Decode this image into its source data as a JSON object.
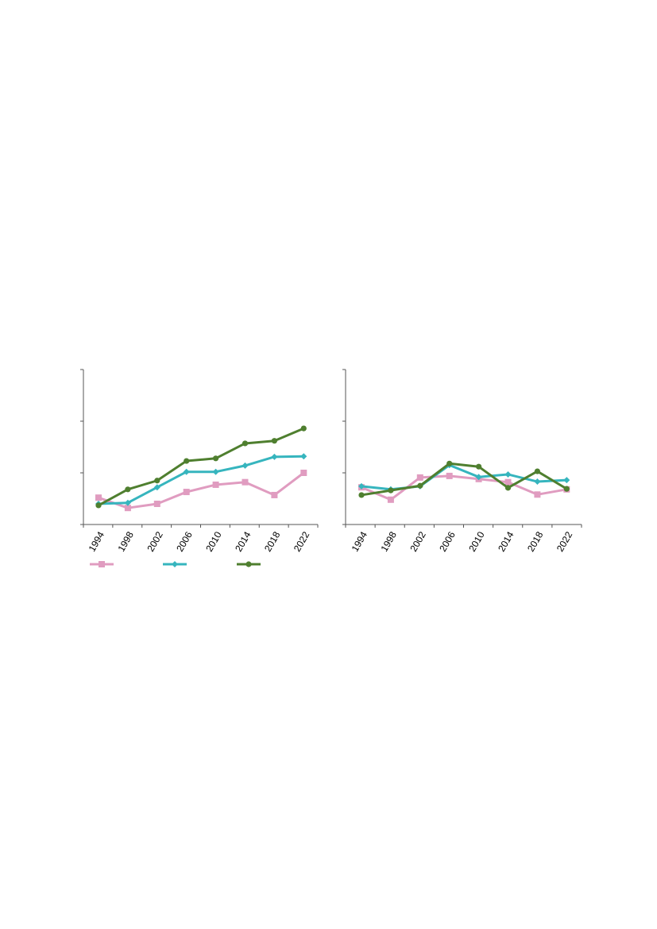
{
  "chart_data": [
    {
      "type": "line",
      "title": "",
      "xlabel": "",
      "ylabel": "",
      "categories": [
        "1994",
        "1998",
        "2002",
        "2006",
        "2010",
        "2014",
        "2018",
        "2022"
      ],
      "ylim": [
        0,
        3
      ],
      "y_ticks_labeled": false,
      "grid": false,
      "legend": "bottom",
      "series": [
        {
          "color": "#e09cc0",
          "marker": "square",
          "values": [
            0.52,
            0.32,
            0.4,
            0.63,
            0.77,
            0.82,
            0.57,
            1.0
          ]
        },
        {
          "color": "#36b5be",
          "marker": "diamond",
          "values": [
            0.4,
            0.42,
            0.72,
            1.02,
            1.02,
            1.14,
            1.31,
            1.32
          ]
        },
        {
          "color": "#4f7f2f",
          "marker": "circle",
          "values": [
            0.37,
            0.68,
            0.85,
            1.23,
            1.28,
            1.57,
            1.62,
            1.86
          ]
        }
      ]
    },
    {
      "type": "line",
      "title": "",
      "xlabel": "",
      "ylabel": "",
      "categories": [
        "1994",
        "1998",
        "2002",
        "2006",
        "2010",
        "2014",
        "2018",
        "2022"
      ],
      "ylim": [
        0,
        3
      ],
      "y_ticks_labeled": false,
      "grid": false,
      "series": [
        {
          "color": "#e09cc0",
          "marker": "square",
          "values": [
            0.72,
            0.48,
            0.91,
            0.94,
            0.88,
            0.82,
            0.58,
            0.68
          ]
        },
        {
          "color": "#36b5be",
          "marker": "diamond",
          "values": [
            0.74,
            0.68,
            0.74,
            1.15,
            0.92,
            0.97,
            0.83,
            0.86
          ]
        },
        {
          "color": "#4f7f2f",
          "marker": "circle",
          "values": [
            0.57,
            0.66,
            0.75,
            1.18,
            1.12,
            0.71,
            1.03,
            0.69
          ]
        }
      ]
    }
  ]
}
